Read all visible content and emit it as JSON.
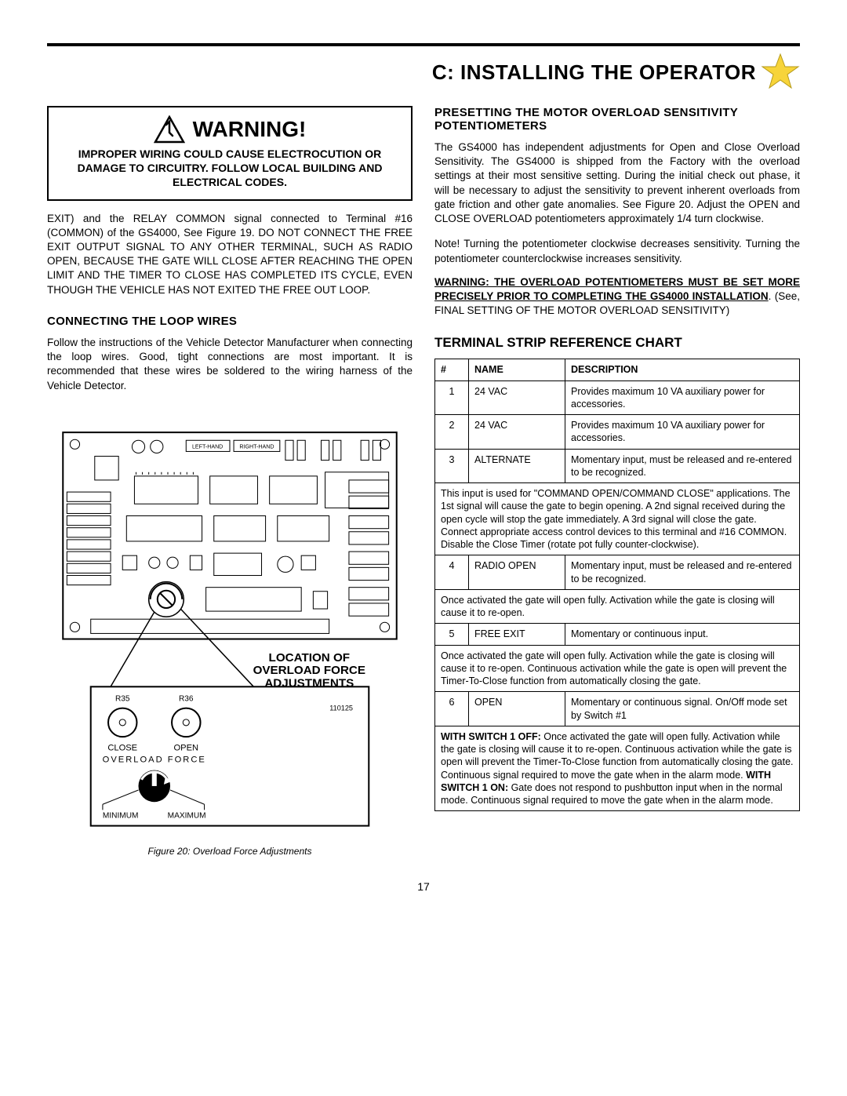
{
  "header": {
    "title": "C: INSTALLING THE OPERATOR",
    "star_fill": "#f7d43a",
    "star_stroke": "#b59a1b"
  },
  "warning_box": {
    "label": "WARNING!",
    "body": "IMPROPER WIRING COULD CAUSE ELECTROCUTION OR DAMAGE TO CIRCUITRY. FOLLOW LOCAL BUILDING AND ELECTRICAL CODES."
  },
  "left": {
    "intro": "EXIT) and the RELAY COMMON signal connected to Terminal #16 (COMMON) of the GS4000, See Figure 19. DO NOT CONNECT THE FREE EXIT OUTPUT SIGNAL TO ANY OTHER TERMINAL, SUCH AS RADIO OPEN, BECAUSE THE GATE WILL CLOSE AFTER REACHING THE OPEN LIMIT AND THE TIMER TO CLOSE HAS COMPLETED ITS CYCLE, EVEN THOUGH THE VEHICLE HAS NOT EXITED THE FREE OUT LOOP.",
    "loop_heading": "CONNECTING THE LOOP WIRES",
    "loop_body": "Follow the instructions of the Vehicle Detector Manufacturer when connecting the loop wires.  Good, tight connections are most important.  It is recommended that these wires be soldered to the wiring harness of the Vehicle Detector."
  },
  "figure": {
    "callout_l1": "LOCATION OF",
    "callout_l2": "OVERLOAD FORCE",
    "callout_l3": "ADJUSTMENTS",
    "pcb_labels": {
      "left_hand": "LEFT-HAND",
      "right_hand": "RIGHT-HAND"
    },
    "panel": {
      "r35": "R35",
      "r36": "R36",
      "close": "CLOSE",
      "open": "OPEN",
      "overload_force": "OVERLOAD  FORCE",
      "minimum": "MINIMUM",
      "maximum": "MAXIMUM",
      "partno": "110125"
    },
    "caption": "Figure 20:  Overload Force Adjustments"
  },
  "right": {
    "preset_heading": "PRESETTING THE MOTOR OVERLOAD SENSITIVITY POTENTIOMETERS",
    "preset_body": "The GS4000 has independent adjustments  for Open and Close Overload Sensitivity.  The GS4000 is shipped from the Factory with the overload settings at their most sensitive setting.  During the initial check out phase, it will be necessary to adjust the sensitivity to prevent inherent overloads from gate friction and other gate anomalies.    See Figure 20.    Adjust the OPEN and CLOSE OVERLOAD potentiometers approximately 1/4 turn clockwise.",
    "note": "Note! Turning the potentiometer clockwise decreases sensitivity.  Turning the potentiometer counterclockwise increases sensitivity.",
    "warn_bold": "WARNING:  THE OVERLOAD POTENTIOMETERS MUST BE SET MORE PRECISELY PRIOR TO COMPLETING THE GS4000 INSTALLATION",
    "warn_rest": ".   (See, FINAL SETTING OF THE MOTOR OVERLOAD SENSITIVITY)",
    "table_heading": "TERMINAL STRIP REFERENCE CHART"
  },
  "terminal_table": {
    "headers": {
      "num": "#",
      "name": "NAME",
      "desc": "DESCRIPTION"
    },
    "rows": [
      {
        "num": "1",
        "name": "24 VAC",
        "desc": "Provides maximum 10 VA auxiliary power for accessories."
      },
      {
        "num": "2",
        "name": "24 VAC",
        "desc": "Provides maximum 10 VA auxiliary power for accessories."
      },
      {
        "num": "3",
        "name": "ALTERNATE",
        "desc": "Momentary input, must be released and re-entered to be recognized."
      },
      {
        "span": "This input is used for \"COMMAND OPEN/COMMAND CLOSE\" applications.  The 1st signal will cause the gate to begin opening.  A 2nd signal received during the open cycle will stop the gate immediately. A 3rd signal will close the gate.  Connect appropriate access control devices to this terminal and #16 COMMON.  Disable the Close Timer (rotate pot fully counter-clockwise)."
      },
      {
        "num": "4",
        "name": "RADIO OPEN",
        "desc": "Momentary input, must be released and re-entered to be recognized."
      },
      {
        "span": "Once activated the gate will open fully.  Activation while the gate is closing will cause it to re-open."
      },
      {
        "num": "5",
        "name": "FREE EXIT",
        "desc": "Momentary or continuous input."
      },
      {
        "span": "Once activated the gate will open fully.  Activation while the gate is closing will cause it to re-open.  Continuous activation while the gate is open will prevent the Timer-To-Close function from automatically closing the gate."
      },
      {
        "num": "6",
        "name": "OPEN",
        "desc": "Momentary or continuous signal. On/Off mode set by Switch #1"
      },
      {
        "span_html": "<b>WITH SWITCH 1 OFF:</b> Once activated the gate will open fully.  Activation while the gate is closing will cause it to re-open.  Continuous activation while the gate is open will prevent the Timer-To-Close function from automatically closing the gate. Continuous signal required to move the gate when in the alarm mode. <b>WITH SWITCH 1 ON:</b> Gate does not respond to pushbutton input when in the normal mode. Continuous signal required to move the gate when in the alarm mode."
      }
    ]
  },
  "page_number": "17"
}
